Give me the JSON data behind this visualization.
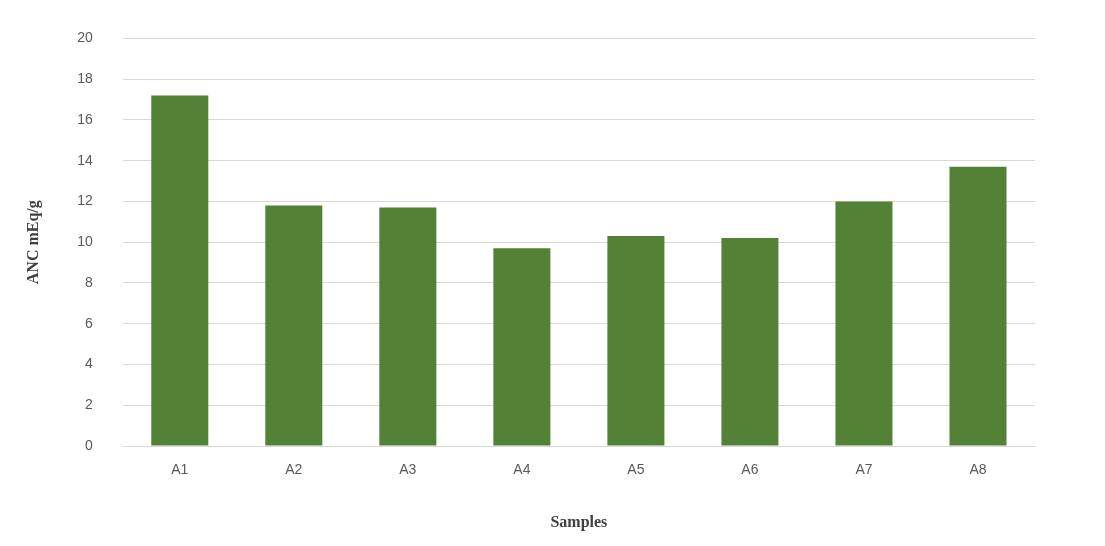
{
  "chart_data": {
    "type": "bar",
    "xlabel": "Samples",
    "ylabel": "ANC mEq/g",
    "categories": [
      "A1",
      "A2",
      "A3",
      "A4",
      "A5",
      "A6",
      "A7",
      "A8"
    ],
    "values": [
      17.2,
      11.8,
      11.7,
      9.7,
      10.3,
      10.2,
      12.0,
      13.7
    ],
    "color": "#538135",
    "ylim": [
      0,
      20
    ],
    "yticks": [
      0,
      2,
      4,
      6,
      8,
      10,
      12,
      14,
      16,
      18,
      20
    ],
    "grid": "y"
  }
}
